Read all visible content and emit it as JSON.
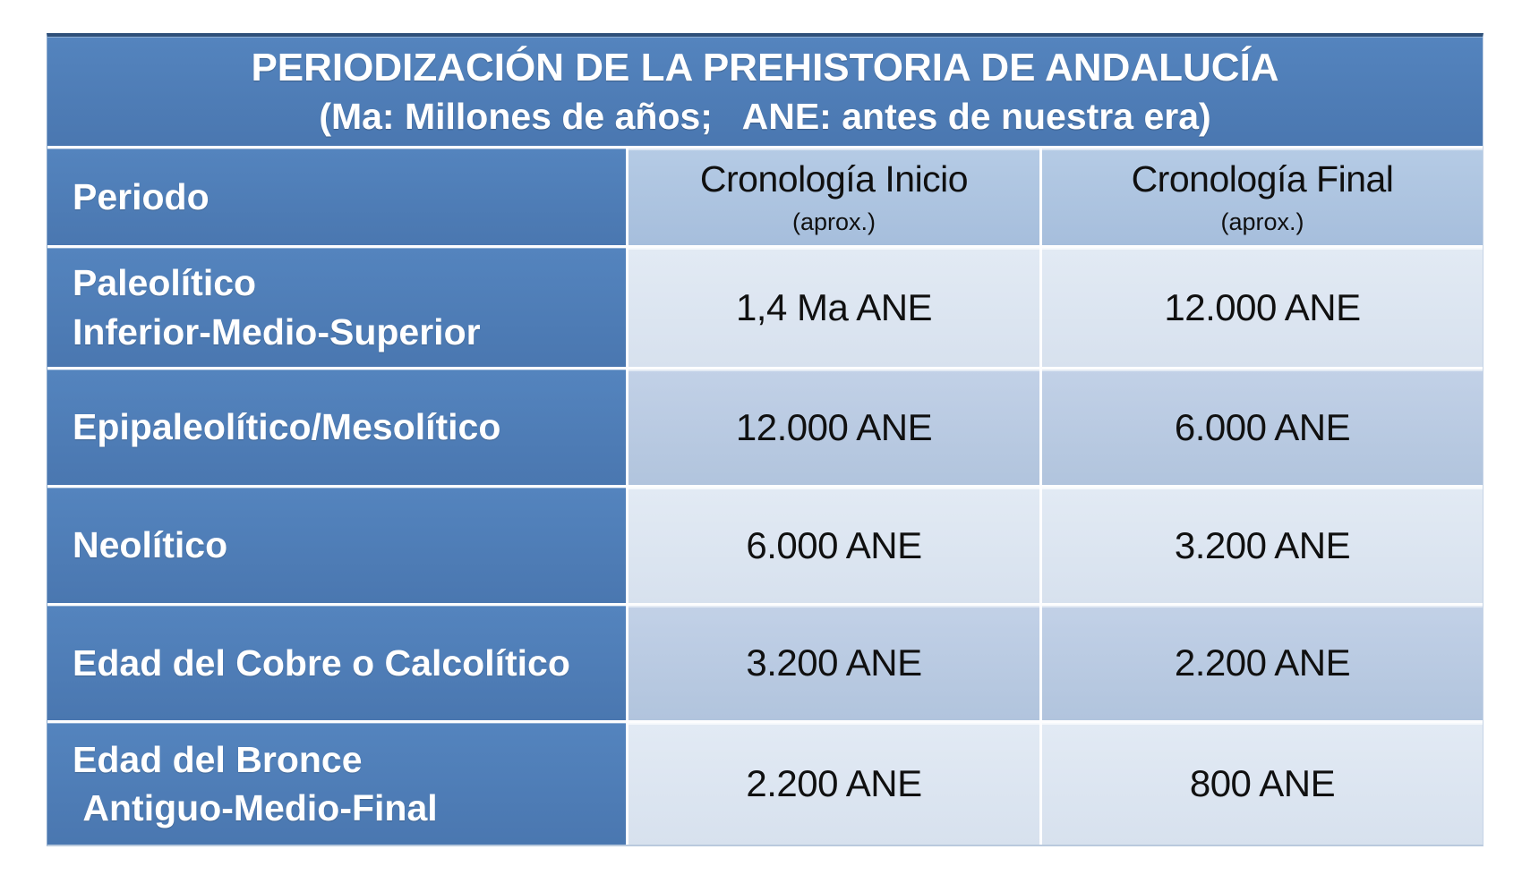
{
  "table": {
    "title": "PERIODIZACIÓN DE LA PREHISTORIA DE ANDALUCÍA",
    "subtitle": "(Ma: Millones de años;   ANE: antes de nuestra era)",
    "columns": {
      "period": {
        "label": "Periodo"
      },
      "inicio": {
        "label": "Cronología Inicio",
        "sublabel": "(aprox.)"
      },
      "final": {
        "label": "Cronología Final",
        "sublabel": "(aprox.)"
      }
    },
    "rows": [
      {
        "period_line1": "Paleolítico",
        "period_line2": "Inferior-Medio-Superior",
        "inicio": "1,4 Ma ANE",
        "final": "12.000 ANE"
      },
      {
        "period_line1": "Epipaleolítico/Mesolítico",
        "period_line2": "",
        "inicio": "12.000 ANE",
        "final": "6.000 ANE"
      },
      {
        "period_line1": "Neolítico",
        "period_line2": "",
        "inicio": "6.000 ANE",
        "final": "3.200 ANE"
      },
      {
        "period_line1": "Edad del Cobre o Calcolítico",
        "period_line2": "",
        "inicio": "3.200 ANE",
        "final": "2.200 ANE"
      },
      {
        "period_line1": "Edad del Bronce",
        "period_line2": " Antiguo-Medio-Final",
        "inicio": "2.200 ANE",
        "final": "800 ANE"
      }
    ],
    "colors": {
      "header_blue": "#4d7cb6",
      "header_light_cell": "#abc3e0",
      "band_light": "#dce6f1",
      "band_medium": "#b8cbe2",
      "top_border": "#2e4f79",
      "separator": "#ffffff",
      "title_text": "#ffffff",
      "data_text": "#101010"
    }
  },
  "chart_data": {
    "type": "table",
    "title": "PERIODIZACIÓN DE LA PREHISTORIA DE ANDALUCÍA",
    "subtitle": "(Ma: Millones de años; ANE: antes de nuestra era)",
    "columns": [
      "Periodo",
      "Cronología Inicio (aprox.)",
      "Cronología Final (aprox.)"
    ],
    "rows": [
      [
        "Paleolítico Inferior-Medio-Superior",
        "1,4 Ma ANE",
        "12.000 ANE"
      ],
      [
        "Epipaleolítico/Mesolítico",
        "12.000 ANE",
        "6.000 ANE"
      ],
      [
        "Neolítico",
        "6.000 ANE",
        "3.200 ANE"
      ],
      [
        "Edad del Cobre o Calcolítico",
        "3.200 ANE",
        "2.200 ANE"
      ],
      [
        "Edad del Bronce Antiguo-Medio-Final",
        "2.200 ANE",
        "800 ANE"
      ]
    ],
    "layout": {
      "banded_rows": true,
      "header_position": "top",
      "first_column_emphasis": true
    }
  }
}
